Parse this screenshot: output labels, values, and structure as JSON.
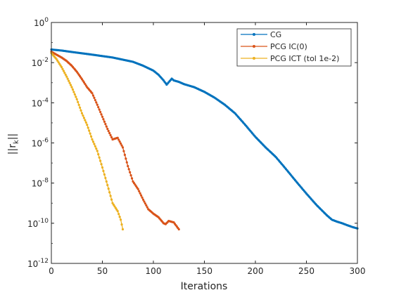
{
  "chart_data": {
    "type": "line",
    "xlabel": "Iterations",
    "ylabel_main": "||r",
    "ylabel_sub": "k",
    "ylabel_end": "||",
    "yscale": "log",
    "xlim": [
      0,
      300
    ],
    "ylim": [
      1e-12,
      1
    ],
    "grid": false,
    "legend_position": "top-right",
    "x_ticks": [
      {
        "value": 0,
        "label": "0"
      },
      {
        "value": 50,
        "label": "50"
      },
      {
        "value": 100,
        "label": "100"
      },
      {
        "value": 150,
        "label": "150"
      },
      {
        "value": 200,
        "label": "200"
      },
      {
        "value": 250,
        "label": "250"
      },
      {
        "value": 300,
        "label": "300"
      }
    ],
    "y_ticks": [
      {
        "value": 1e-12,
        "base": "10",
        "exp": "-12"
      },
      {
        "value": 1e-10,
        "base": "10",
        "exp": "-10"
      },
      {
        "value": 1e-08,
        "base": "10",
        "exp": "-8"
      },
      {
        "value": 1e-06,
        "base": "10",
        "exp": "-6"
      },
      {
        "value": 0.0001,
        "base": "10",
        "exp": "-4"
      },
      {
        "value": 0.01,
        "base": "10",
        "exp": "-2"
      },
      {
        "value": 1,
        "base": "10",
        "exp": "0"
      }
    ],
    "series": [
      {
        "name": "CG",
        "color": "#0072BD",
        "x": [
          0,
          10,
          20,
          40,
          60,
          80,
          90,
          100,
          105,
          110,
          113,
          116,
          118,
          120,
          125,
          130,
          140,
          150,
          160,
          170,
          180,
          190,
          200,
          210,
          220,
          230,
          240,
          250,
          260,
          270,
          275,
          280,
          285,
          290,
          295,
          300
        ],
        "y": [
          0.045,
          0.04,
          0.034,
          0.025,
          0.018,
          0.011,
          0.007,
          0.004,
          0.0025,
          0.0013,
          0.0008,
          0.0012,
          0.0016,
          0.0013,
          0.0011,
          0.00085,
          0.0006,
          0.00035,
          0.00018,
          8e-05,
          3e-05,
          8e-06,
          2e-06,
          6e-07,
          2e-07,
          5e-08,
          1.2e-08,
          3e-09,
          8e-10,
          2.5e-10,
          1.5e-10,
          1.2e-10,
          1e-10,
          8e-11,
          6.5e-11,
          5.5e-11
        ]
      },
      {
        "name": "PCG IC(0)",
        "color": "#D95319",
        "x": [
          0,
          5,
          10,
          15,
          20,
          25,
          30,
          35,
          40,
          45,
          50,
          55,
          60,
          65,
          70,
          75,
          80,
          85,
          90,
          95,
          100,
          105,
          110,
          112,
          115,
          120,
          125
        ],
        "y": [
          0.035,
          0.025,
          0.018,
          0.012,
          0.007,
          0.0035,
          0.0015,
          0.0006,
          0.0003,
          8e-05,
          2e-05,
          5e-06,
          1.5e-06,
          1.8e-06,
          6e-07,
          7e-08,
          1.2e-08,
          5e-09,
          1.5e-09,
          5e-10,
          3e-10,
          2e-10,
          1e-10,
          9e-11,
          1.3e-10,
          1.1e-10,
          5e-11
        ]
      },
      {
        "name": "PCG ICT (tol 1e-2)",
        "color": "#EDB120",
        "x": [
          0,
          5,
          10,
          15,
          20,
          25,
          30,
          35,
          40,
          45,
          50,
          55,
          60,
          65,
          68,
          70
        ],
        "y": [
          0.03,
          0.015,
          0.006,
          0.002,
          0.0006,
          0.00015,
          3e-05,
          8e-06,
          1.5e-06,
          4e-07,
          6e-08,
          8e-09,
          1e-09,
          4e-10,
          1.5e-10,
          5e-11
        ]
      }
    ]
  }
}
